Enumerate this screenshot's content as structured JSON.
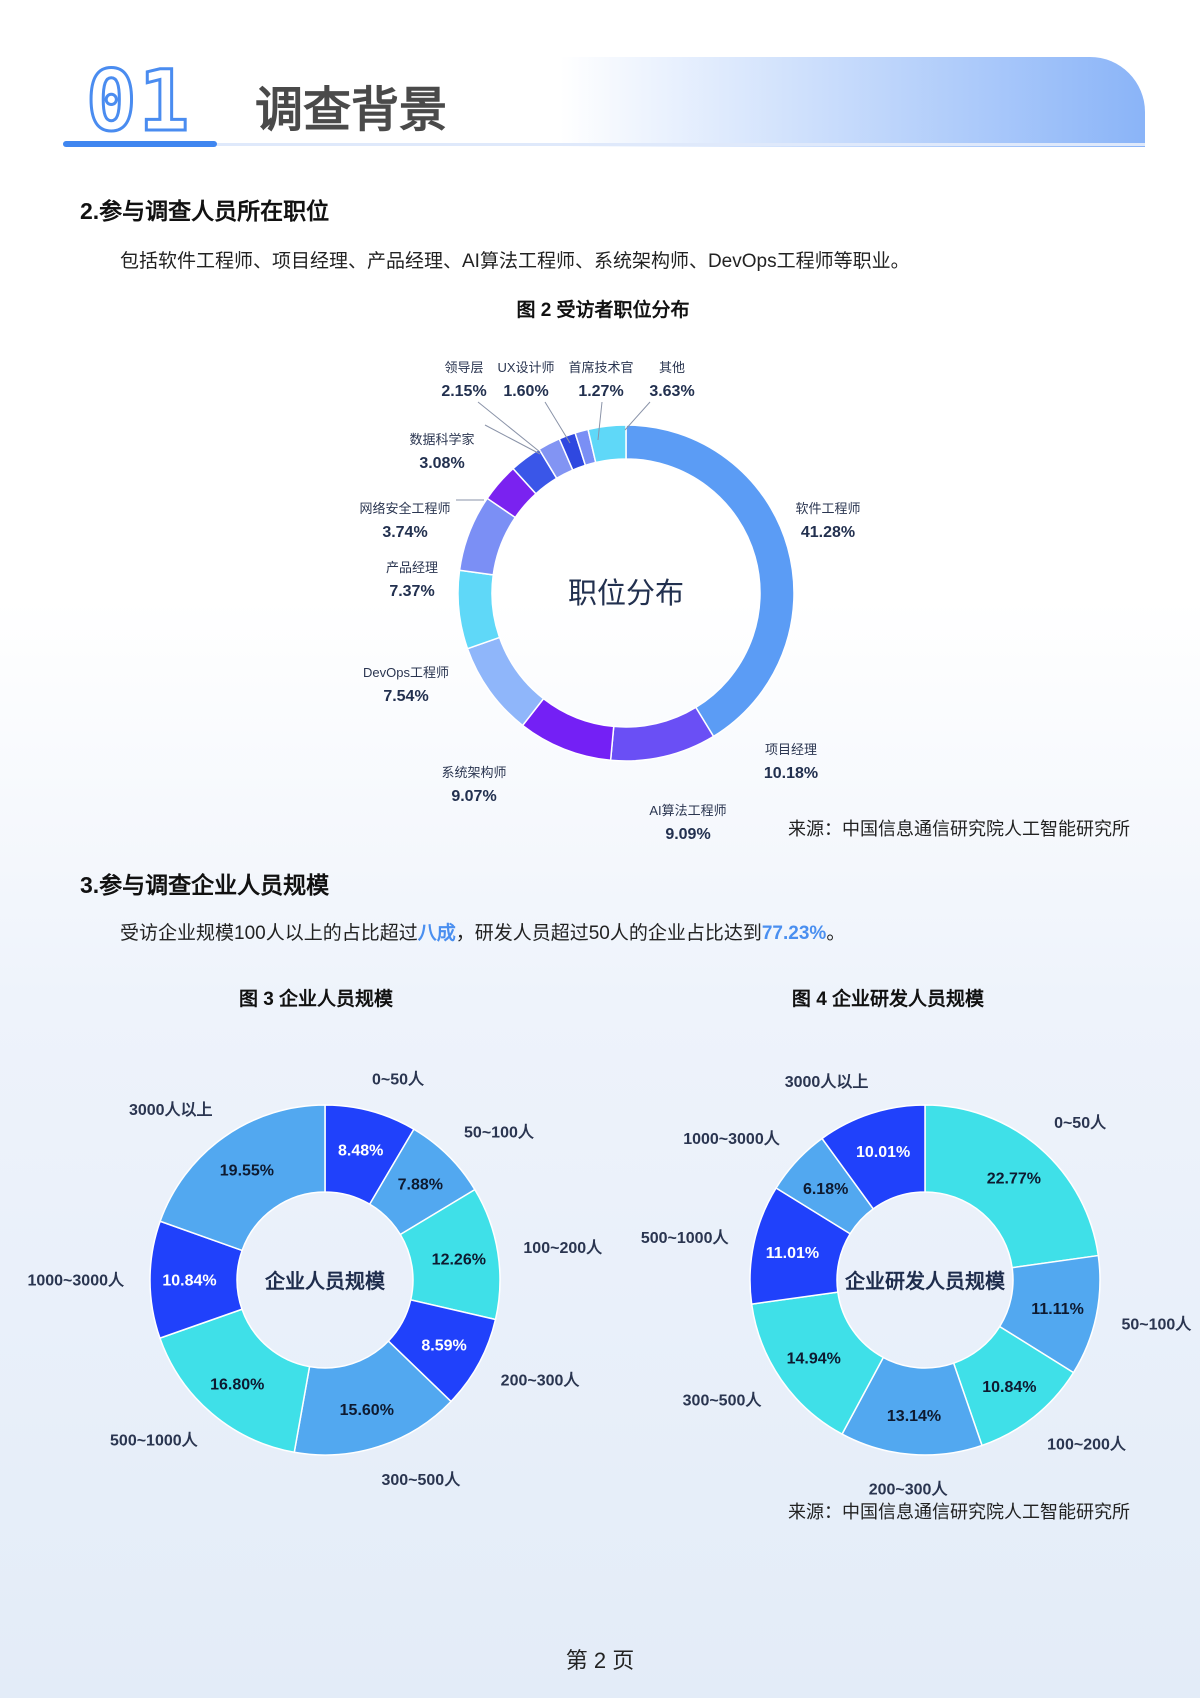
{
  "header": {
    "number": "01",
    "title": "调查背景"
  },
  "section2": {
    "heading": "2.参与调查人员所在职位",
    "paragraph": "包括软件工程师、项目经理、产品经理、AI算法工程师、系统架构师、DevOps工程师等职业。"
  },
  "section3": {
    "heading": "3.参与调查企业人员规模",
    "para_1": "受访企业规模100人以上的占比超过",
    "para_hl1": "八成",
    "para_2": "，研发人员超过50人的企业占比达到",
    "para_hl2": "77.23%",
    "para_3": "。"
  },
  "source": "来源：中国信息通信研究院人工智能研究所",
  "page_number": "第 2 页",
  "colors": {
    "accent": "#4a8ff0"
  },
  "chart_data": [
    {
      "type": "pie",
      "donut": true,
      "title": "图 2 受访者职位分布",
      "center_label": "职位分布",
      "categories": [
        "软件工程师",
        "项目经理",
        "AI算法工程师",
        "系统架构师",
        "DevOps工程师",
        "产品经理",
        "网络安全工程师",
        "数据科学家",
        "领导层",
        "UX设计师",
        "首席技术官",
        "其他"
      ],
      "values": [
        41.28,
        10.18,
        9.09,
        9.07,
        7.54,
        7.37,
        3.74,
        3.08,
        2.15,
        1.6,
        1.27,
        3.63
      ],
      "labels": [
        "41.28%",
        "10.18%",
        "9.09%",
        "9.07%",
        "7.54%",
        "7.37%",
        "3.74%",
        "3.08%",
        "2.15%",
        "1.60%",
        "1.27%",
        "3.63%"
      ],
      "colors": [
        "#5b9cf5",
        "#6a4ff5",
        "#7420f5",
        "#8fb6fa",
        "#5fd8f8",
        "#7b8ff5",
        "#7a22f0",
        "#3a56e8",
        "#8294f3",
        "#2f48e0",
        "#7a8ff5",
        "#5fd8f8"
      ]
    },
    {
      "type": "pie",
      "donut": true,
      "title": "图 3 企业人员规模",
      "center_label": "企业人员规模",
      "categories": [
        "0~50人",
        "50~100人",
        "100~200人",
        "200~300人",
        "300~500人",
        "500~1000人",
        "1000~3000人",
        "3000人以上"
      ],
      "values": [
        8.48,
        7.88,
        12.26,
        8.59,
        15.6,
        16.8,
        10.84,
        19.55
      ],
      "labels": [
        "8.48%",
        "7.88%",
        "12.26%",
        "8.59%",
        "15.60%",
        "16.80%",
        "10.84%",
        "19.55%"
      ],
      "colors": [
        "#2041fb",
        "#52a8f0",
        "#3fe0e8",
        "#2041fb",
        "#52a8f0",
        "#3fe0e8",
        "#2041fb",
        "#52a8f0"
      ]
    },
    {
      "type": "pie",
      "donut": true,
      "title": "图 4 企业研发人员规模",
      "center_label": "企业研发人员规模",
      "categories": [
        "0~50人",
        "50~100人",
        "100~200人",
        "200~300人",
        "300~500人",
        "500~1000人",
        "1000~3000人",
        "3000人以上"
      ],
      "values": [
        22.77,
        11.11,
        10.84,
        13.14,
        14.94,
        11.01,
        6.18,
        10.01
      ],
      "labels": [
        "22.77%",
        "11.11%",
        "10.84%",
        "13.14%",
        "14.94%",
        "11.01%",
        "6.18%",
        "10.01%"
      ],
      "colors": [
        "#3fe0e8",
        "#52a8f0",
        "#3fe0e8",
        "#52a8f0",
        "#3fe0e8",
        "#2041fb",
        "#52a8f0",
        "#2041fb"
      ]
    }
  ]
}
